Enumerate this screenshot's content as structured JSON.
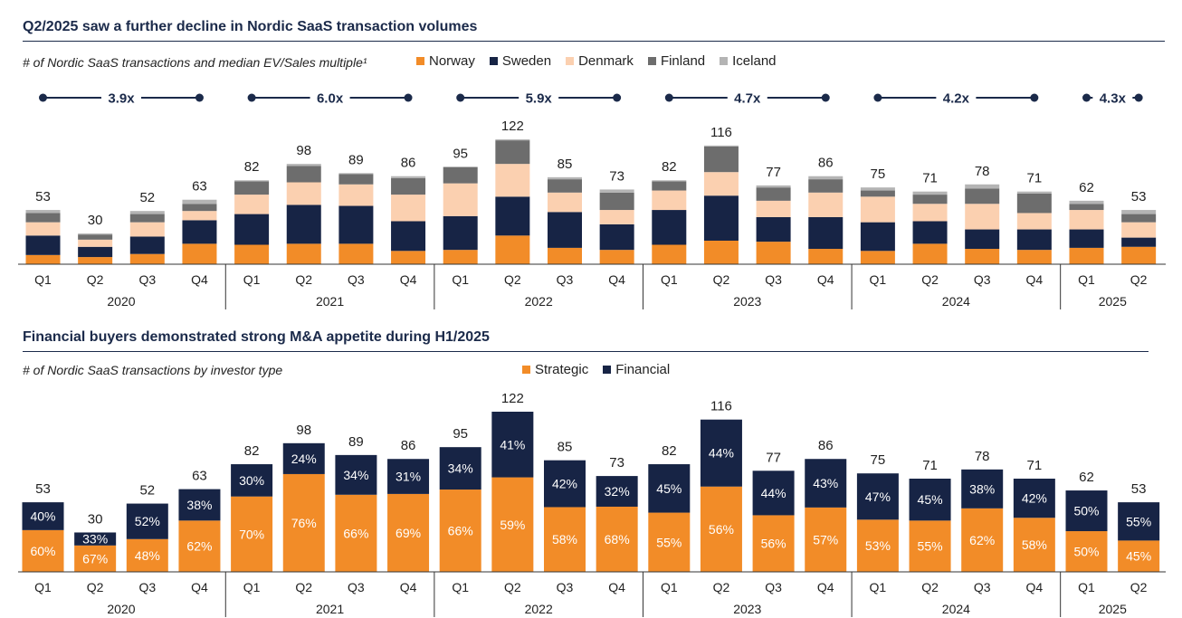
{
  "colors": {
    "Norway": "#f28c28",
    "Sweden": "#172445",
    "Denmark": "#fbd0b0",
    "Finland": "#6d6d6d",
    "Iceland": "#b4b4b4",
    "Strategic": "#f28c28",
    "Financial": "#172445",
    "navy": "#1b2a4a"
  },
  "chart_data": [
    {
      "type": "bar",
      "stacked": true,
      "title": "Q2/2025 saw a further decline in Nordic SaaS transaction volumes",
      "subtitle": "# of Nordic SaaS transactions and median EV/Sales multiple¹",
      "legend_position": "top",
      "categories": [
        "Q1",
        "Q2",
        "Q3",
        "Q4",
        "Q1",
        "Q2",
        "Q3",
        "Q4",
        "Q1",
        "Q2",
        "Q3",
        "Q4",
        "Q1",
        "Q2",
        "Q3",
        "Q4",
        "Q1",
        "Q2",
        "Q3",
        "Q4",
        "Q1",
        "Q2"
      ],
      "totals": [
        53,
        30,
        52,
        63,
        82,
        98,
        89,
        86,
        95,
        122,
        85,
        73,
        82,
        116,
        77,
        86,
        75,
        71,
        78,
        71,
        62,
        53
      ],
      "years": [
        {
          "label": "2020",
          "start": 0,
          "end": 3
        },
        {
          "label": "2021",
          "start": 4,
          "end": 7
        },
        {
          "label": "2022",
          "start": 8,
          "end": 11
        },
        {
          "label": "2023",
          "start": 12,
          "end": 15
        },
        {
          "label": "2024",
          "start": 16,
          "end": 19
        },
        {
          "label": "2025",
          "start": 20,
          "end": 21
        }
      ],
      "multiples": [
        {
          "label": "3.9x",
          "start": 0,
          "end": 3
        },
        {
          "label": "6.0x",
          "start": 4,
          "end": 7
        },
        {
          "label": "5.9x",
          "start": 8,
          "end": 11
        },
        {
          "label": "4.7x",
          "start": 12,
          "end": 15
        },
        {
          "label": "4.2x",
          "start": 16,
          "end": 19
        },
        {
          "label": "4.3x",
          "start": 20,
          "end": 21
        }
      ],
      "series": [
        {
          "name": "Norway",
          "values": [
            9,
            7,
            10,
            20,
            19,
            20,
            20,
            13,
            14,
            28,
            16,
            14,
            19,
            23,
            22,
            15,
            13,
            20,
            15,
            14,
            16,
            17
          ]
        },
        {
          "name": "Sweden",
          "values": [
            19,
            10,
            17,
            23,
            30,
            38,
            37,
            29,
            33,
            38,
            35,
            25,
            34,
            44,
            24,
            31,
            28,
            22,
            19,
            20,
            18,
            9
          ]
        },
        {
          "name": "Denmark",
          "values": [
            13,
            7,
            14,
            9,
            19,
            22,
            21,
            26,
            32,
            32,
            19,
            14,
            19,
            23,
            16,
            24,
            25,
            17,
            25,
            16,
            19,
            15
          ]
        },
        {
          "name": "Finland",
          "values": [
            9,
            5,
            8,
            7,
            13,
            16,
            10,
            16,
            16,
            23,
            13,
            17,
            9,
            25,
            13,
            13,
            6,
            9,
            15,
            19,
            6,
            8
          ]
        },
        {
          "name": "Iceland",
          "values": [
            3,
            1,
            3,
            4,
            1,
            2,
            1,
            2,
            0,
            1,
            2,
            3,
            1,
            1,
            2,
            3,
            3,
            3,
            4,
            2,
            3,
            4
          ]
        }
      ]
    },
    {
      "type": "bar",
      "stacked": true,
      "title": "Financial buyers demonstrated strong M&A appetite during H1/2025",
      "subtitle": "# of Nordic SaaS transactions by investor type",
      "legend_position": "top",
      "categories": [
        "Q1",
        "Q2",
        "Q3",
        "Q4",
        "Q1",
        "Q2",
        "Q3",
        "Q4",
        "Q1",
        "Q2",
        "Q3",
        "Q4",
        "Q1",
        "Q2",
        "Q3",
        "Q4",
        "Q1",
        "Q2",
        "Q3",
        "Q4",
        "Q1",
        "Q2"
      ],
      "totals": [
        53,
        30,
        52,
        63,
        82,
        98,
        89,
        86,
        95,
        122,
        85,
        73,
        82,
        116,
        77,
        86,
        75,
        71,
        78,
        71,
        62,
        53
      ],
      "years": [
        {
          "label": "2020",
          "start": 0,
          "end": 3
        },
        {
          "label": "2021",
          "start": 4,
          "end": 7
        },
        {
          "label": "2022",
          "start": 8,
          "end": 11
        },
        {
          "label": "2023",
          "start": 12,
          "end": 15
        },
        {
          "label": "2024",
          "start": 16,
          "end": 19
        },
        {
          "label": "2025",
          "start": 20,
          "end": 21
        }
      ],
      "series": [
        {
          "name": "Strategic",
          "percent": [
            60,
            67,
            48,
            62,
            70,
            76,
            66,
            69,
            66,
            59,
            58,
            68,
            55,
            56,
            56,
            57,
            53,
            55,
            62,
            58,
            50,
            45
          ]
        },
        {
          "name": "Financial",
          "percent": [
            40,
            33,
            52,
            38,
            30,
            24,
            34,
            31,
            34,
            41,
            42,
            32,
            45,
            44,
            44,
            43,
            47,
            45,
            38,
            42,
            50,
            55
          ]
        }
      ]
    }
  ],
  "legend1": [
    "Norway",
    "Sweden",
    "Denmark",
    "Finland",
    "Iceland"
  ],
  "legend2": [
    "Strategic",
    "Financial"
  ]
}
